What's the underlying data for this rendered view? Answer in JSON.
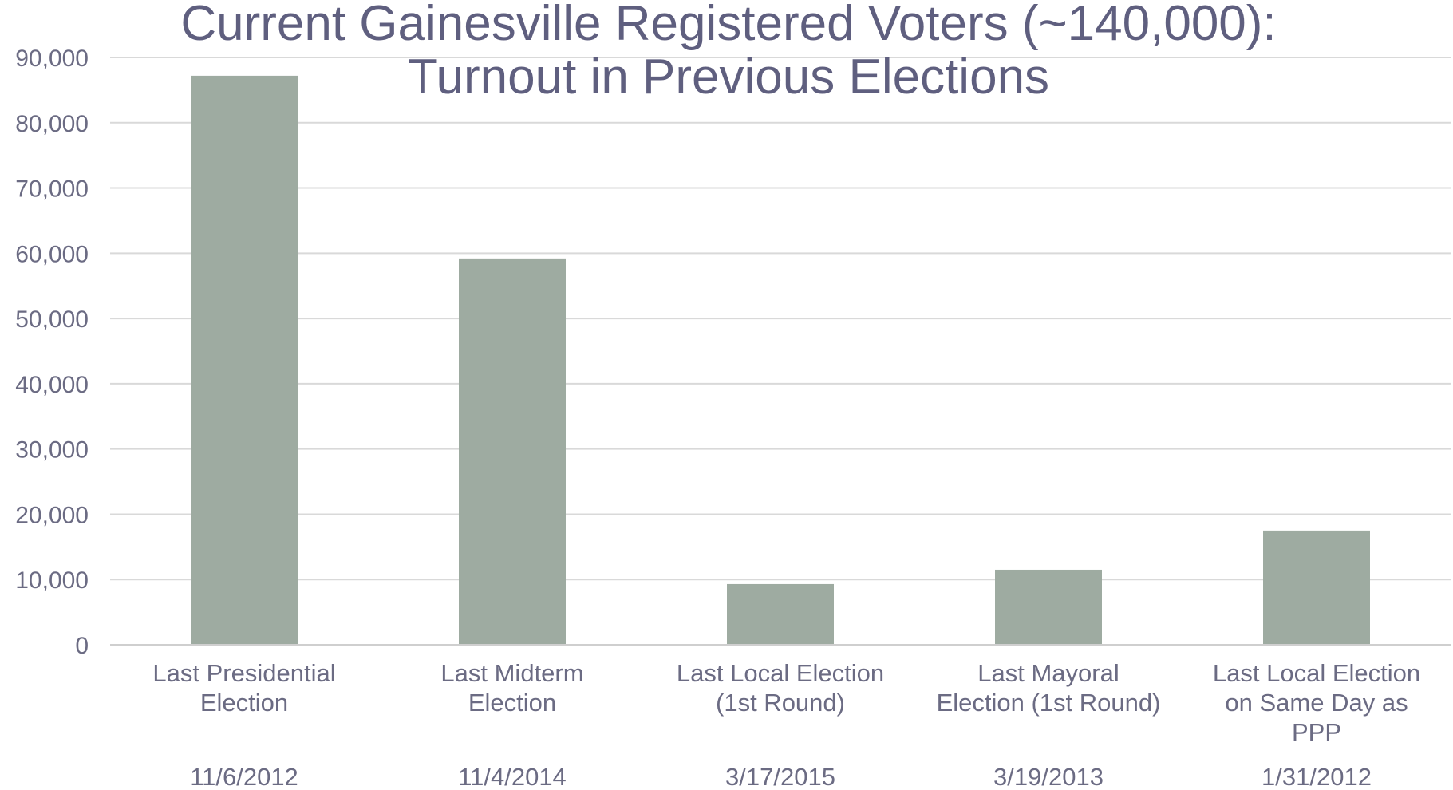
{
  "chart_data": {
    "type": "bar",
    "title_lines": [
      "Current Gainesville Registered Voters (~140,000):",
      "Turnout in Previous Elections"
    ],
    "categories": [
      [
        "Last Presidential",
        "Election"
      ],
      [
        "Last Midterm",
        "Election"
      ],
      [
        "Last Local Election",
        "(1st Round)"
      ],
      [
        "Last Mayoral",
        "Election (1st Round)"
      ],
      [
        "Last Local Election",
        "on Same Day as",
        "PPP"
      ]
    ],
    "dates": [
      "11/6/2012",
      "11/4/2014",
      "3/17/2015",
      "3/19/2013",
      "1/31/2012"
    ],
    "values": [
      87200,
      59200,
      9300,
      11500,
      17500
    ],
    "ylim": [
      0,
      90000
    ],
    "yticks": [
      0,
      10000,
      20000,
      30000,
      40000,
      50000,
      60000,
      70000,
      80000,
      90000
    ],
    "ytick_labels": [
      "0",
      "10,000",
      "20,000",
      "30,000",
      "40,000",
      "50,000",
      "60,000",
      "70,000",
      "80,000",
      "90,000"
    ],
    "grid": true,
    "colors": {
      "bar": "#9eaba1",
      "text": "#6b6b83",
      "title": "#5f5f7f",
      "grid": "#d9d9d9"
    }
  }
}
